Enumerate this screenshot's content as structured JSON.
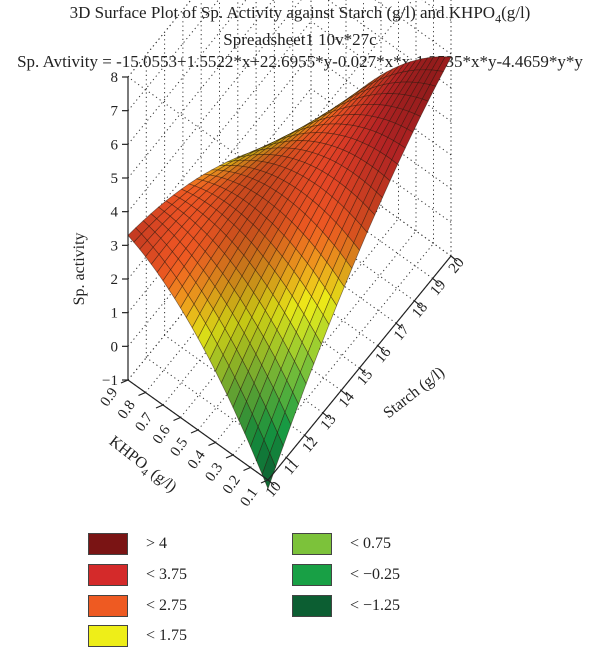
{
  "chart_data": {
    "type": "surface3d",
    "title": "3D Surface Plot of Sp. Activity against Starch (g/l) and KHPO",
    "title_sub": "4",
    "title_tail": "(g/l)",
    "subtitle": "Spreadsheet1 10v*27c",
    "equation": "Sp. Avtivity = -15.0553+1.5522*x+22.6955*y-0.027*x*x-1.2535*x*y-4.4659*y*y",
    "xlabel": "Starch (g/l)",
    "ylabel_main": "KHPO",
    "ylabel_sub": "4",
    "ylabel_tail": " (g/l)",
    "zlabel": "Sp. activity",
    "x_ticks": [
      "10",
      "11",
      "12",
      "13",
      "14",
      "15",
      "16",
      "17",
      "18",
      "19",
      "20"
    ],
    "y_ticks": [
      "0.1",
      "0.2",
      "0.3",
      "0.4",
      "0.5",
      "0.6",
      "0.7",
      "0.8",
      "0.9"
    ],
    "z_ticks": [
      "−1",
      "0",
      "1",
      "2",
      "3",
      "4",
      "5",
      "6",
      "7",
      "8"
    ],
    "xlim": [
      10,
      20
    ],
    "ylim": [
      0.1,
      0.9
    ],
    "zlim": [
      -1,
      8
    ],
    "coefficients": {
      "c0": -15.0553,
      "x": 1.5522,
      "y": 22.6955,
      "xx": -0.027,
      "xy": -1.2535,
      "yy": -4.4659
    },
    "legend": [
      {
        "label": "> 4",
        "color": "#7a1414"
      },
      {
        "label": "< 3.75",
        "color": "#d42a2a"
      },
      {
        "label": "< 2.75",
        "color": "#ee5a22"
      },
      {
        "label": "< 1.75",
        "color": "#eeee18"
      },
      {
        "label": "< 0.75",
        "color": "#7cc23a"
      },
      {
        "label": "< −0.25",
        "color": "#18a045"
      },
      {
        "label": "< −1.25",
        "color": "#0c5e32"
      }
    ]
  }
}
